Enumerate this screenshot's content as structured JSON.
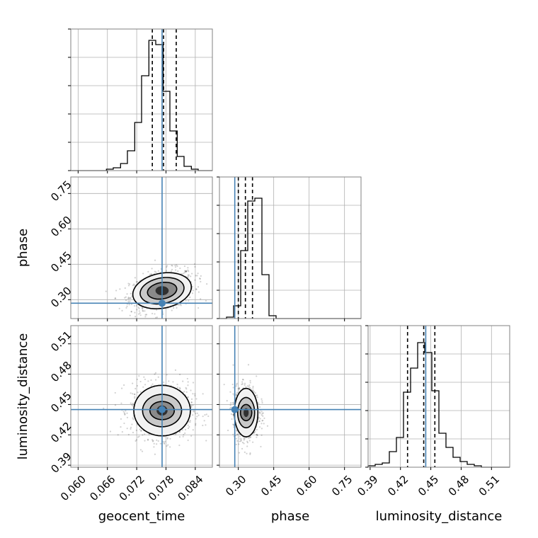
{
  "chart_data": {
    "type": "corner",
    "grid": true,
    "truth_color": "#4682b4",
    "hist_color": "#000000",
    "parameters": [
      {
        "name": "geocent_time",
        "label": "geocent_time",
        "range": [
          0.0585,
          0.0875
        ],
        "ticks": [
          0.06,
          0.066,
          0.072,
          0.078,
          0.084
        ],
        "tick_labels": [
          "0.060",
          "0.066",
          "0.072",
          "0.078",
          "0.084"
        ],
        "truth": 0.0772,
        "quantiles": [
          0.0752,
          0.0775,
          0.0801
        ]
      },
      {
        "name": "phase",
        "label": "phase",
        "range": [
          0.22,
          0.82
        ],
        "ticks": [
          0.3,
          0.45,
          0.6,
          0.75
        ],
        "tick_labels": [
          "0.30",
          "0.45",
          "0.60",
          "0.75"
        ],
        "truth": 0.285,
        "quantiles": [
          0.3,
          0.33,
          0.36
        ]
      },
      {
        "name": "luminosity_distance",
        "label": "luminosity_distance",
        "range": [
          0.388,
          0.528
        ],
        "ticks": [
          0.39,
          0.42,
          0.45,
          0.48,
          0.51
        ],
        "tick_labels": [
          "0.39",
          "0.42",
          "0.45",
          "0.48",
          "0.51"
        ],
        "truth": 0.445,
        "quantiles": [
          0.427,
          0.443,
          0.454
        ]
      }
    ],
    "histograms": [
      {
        "param": "geocent_time",
        "bin_edges": [
          0.0585,
          0.06,
          0.0614,
          0.0629,
          0.0643,
          0.0658,
          0.0672,
          0.0687,
          0.0701,
          0.0716,
          0.073,
          0.0745,
          0.0759,
          0.0774,
          0.0788,
          0.0803,
          0.0817,
          0.0832,
          0.0846,
          0.0861,
          0.0875
        ],
        "counts": [
          0,
          0,
          0,
          0,
          0,
          1,
          2,
          5,
          14,
          34,
          67,
          92,
          89,
          56,
          28,
          10,
          3,
          1,
          0,
          0
        ],
        "ylim": [
          0,
          100
        ]
      },
      {
        "param": "phase",
        "bin_edges": [
          0.22,
          0.25,
          0.28,
          0.31,
          0.34,
          0.37,
          0.4,
          0.43,
          0.46,
          0.49,
          0.52,
          0.55,
          0.58,
          0.61,
          0.64,
          0.67,
          0.7,
          0.73,
          0.76,
          0.79,
          0.82
        ],
        "counts": [
          0,
          1,
          9,
          48,
          83,
          85,
          31,
          2,
          0,
          0,
          0,
          0,
          0,
          0,
          0,
          0,
          0,
          0,
          0,
          0
        ],
        "ylim": [
          0,
          100
        ]
      },
      {
        "param": "luminosity_distance",
        "bin_edges": [
          0.388,
          0.395,
          0.402,
          0.409,
          0.416,
          0.423,
          0.43,
          0.437,
          0.444,
          0.451,
          0.458,
          0.465,
          0.472,
          0.479,
          0.486,
          0.493,
          0.5,
          0.507,
          0.514,
          0.521,
          0.528
        ],
        "counts": [
          1,
          2,
          3,
          11,
          21,
          53,
          70,
          88,
          81,
          54,
          24,
          14,
          7,
          4,
          2,
          1,
          0,
          0,
          0,
          0
        ],
        "ylim": [
          0,
          100
        ]
      }
    ],
    "panels_2d": [
      {
        "x": "geocent_time",
        "y": "phase",
        "center": [
          0.0772,
          0.338
        ],
        "contour_radii": [
          [
            0.003,
            0.035
          ],
          [
            0.0045,
            0.055
          ],
          [
            0.006,
            0.075
          ]
        ],
        "tilt": 0.35
      },
      {
        "x": "geocent_time",
        "y": "luminosity_distance",
        "center": [
          0.0772,
          0.444
        ],
        "contour_radii": [
          [
            0.0025,
            0.009
          ],
          [
            0.004,
            0.016
          ],
          [
            0.0058,
            0.025
          ]
        ],
        "tilt": 0
      },
      {
        "x": "phase",
        "y": "luminosity_distance",
        "center": [
          0.333,
          0.442
        ],
        "contour_radii": [
          [
            0.024,
            0.008
          ],
          [
            0.036,
            0.015
          ],
          [
            0.05,
            0.024
          ]
        ],
        "tilt": 0
      }
    ]
  }
}
